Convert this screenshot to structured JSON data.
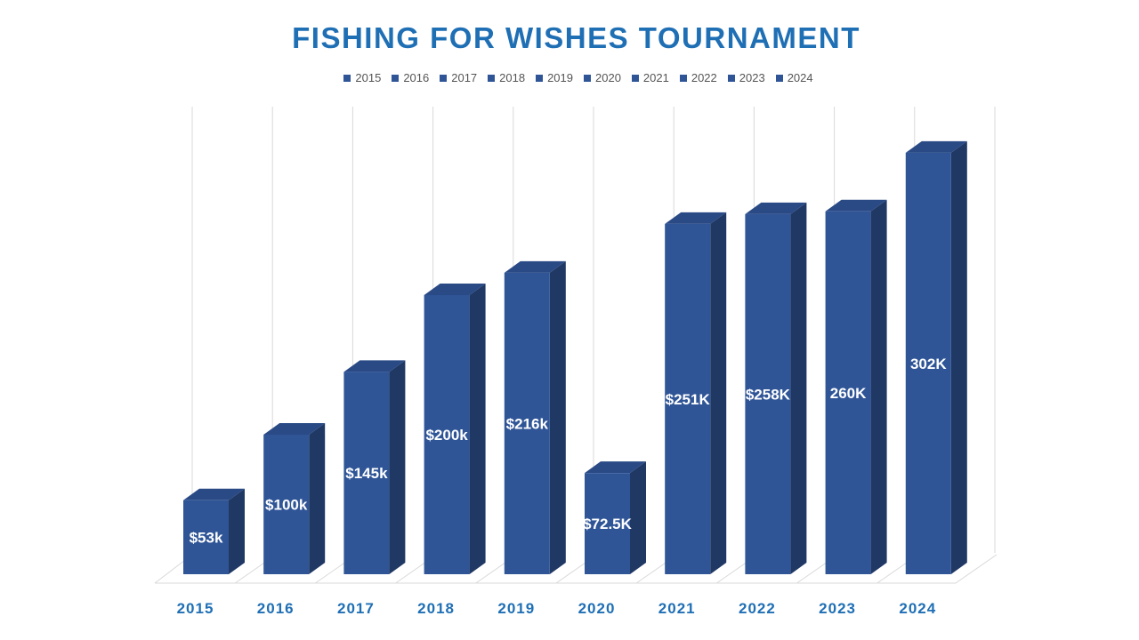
{
  "colors": {
    "bar_front": "#2f5597",
    "bar_side": "#203864",
    "bar_top": "#2a4a86",
    "title": "#1f6fb5",
    "axis_label": "#1f6fb5",
    "grid": "#d9d9d9",
    "data_label": "#ffffff"
  },
  "chart_data": {
    "type": "bar",
    "style": "3d-column",
    "title": "FISHING FOR WISHES TOURNAMENT",
    "categories": [
      "2015",
      "2016",
      "2017",
      "2018",
      "2019",
      "2020",
      "2021",
      "2022",
      "2023",
      "2024"
    ],
    "values": [
      53,
      100,
      145,
      200,
      216,
      72.5,
      251,
      258,
      260,
      302
    ],
    "data_labels": [
      "$53k",
      "$100k",
      "$145k",
      "$200k",
      "$216k",
      "$72.5K",
      "$251K",
      "$258K",
      "260K",
      "302K"
    ],
    "legend": [
      "2015",
      "2016",
      "2017",
      "2018",
      "2019",
      "2020",
      "2021",
      "2022",
      "2023",
      "2024"
    ],
    "legend_position": "top",
    "ylim": [
      0,
      335
    ],
    "y_axis_visible": false,
    "vertical_gridlines": true
  }
}
